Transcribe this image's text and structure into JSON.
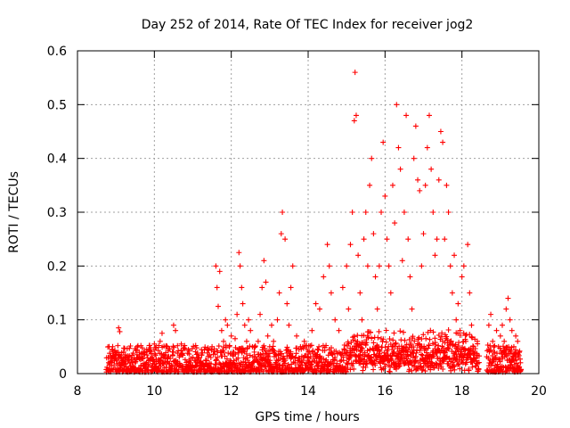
{
  "chart_data": {
    "type": "scatter",
    "title": "Day 252 of 2014, Rate Of TEC Index for receiver jog2",
    "xlabel": "GPS time / hours",
    "ylabel": "ROTI / TECUs",
    "xlim": [
      8,
      20
    ],
    "ylim": [
      0,
      0.6
    ],
    "x_ticks": [
      8,
      10,
      12,
      14,
      16,
      18,
      20
    ],
    "x_tick_labels": [
      "8",
      "10",
      "12",
      "14",
      "16",
      "18",
      "20"
    ],
    "y_ticks": [
      0,
      0.1,
      0.2,
      0.3,
      0.4,
      0.5,
      0.6
    ],
    "y_tick_labels": [
      "0",
      "0.1",
      "0.2",
      "0.3",
      "0.4",
      "0.5",
      "0.6"
    ],
    "grid": true,
    "marker": "+",
    "series": [
      {
        "name": "ROTI",
        "color": "#ff0000",
        "points": [
          [
            8.8,
            0.03
          ],
          [
            8.85,
            0.022
          ],
          [
            8.9,
            0.045
          ],
          [
            8.95,
            0.015
          ],
          [
            9.0,
            0.035
          ],
          [
            9.05,
            0.052
          ],
          [
            9.07,
            0.085
          ],
          [
            9.1,
            0.078
          ],
          [
            9.15,
            0.028
          ],
          [
            9.2,
            0.04
          ],
          [
            9.25,
            0.018
          ],
          [
            9.3,
            0.033
          ],
          [
            9.35,
            0.047
          ],
          [
            9.4,
            0.025
          ],
          [
            9.45,
            0.038
          ],
          [
            9.5,
            0.02
          ],
          [
            9.55,
            0.044
          ],
          [
            9.6,
            0.03
          ],
          [
            9.65,
            0.052
          ],
          [
            9.7,
            0.016
          ],
          [
            9.75,
            0.036
          ],
          [
            9.8,
            0.041
          ],
          [
            9.85,
            0.024
          ],
          [
            9.9,
            0.048
          ],
          [
            9.95,
            0.031
          ],
          [
            10.0,
            0.055
          ],
          [
            10.05,
            0.027
          ],
          [
            10.1,
            0.043
          ],
          [
            10.15,
            0.06
          ],
          [
            10.2,
            0.075
          ],
          [
            10.25,
            0.034
          ],
          [
            10.3,
            0.05
          ],
          [
            10.35,
            0.022
          ],
          [
            10.4,
            0.046
          ],
          [
            10.5,
            0.09
          ],
          [
            10.55,
            0.08
          ],
          [
            10.6,
            0.038
          ],
          [
            10.7,
            0.055
          ],
          [
            10.8,
            0.026
          ],
          [
            10.9,
            0.042
          ],
          [
            11.0,
            0.03
          ],
          [
            11.1,
            0.048
          ],
          [
            11.2,
            0.02
          ],
          [
            11.3,
            0.044
          ],
          [
            11.4,
            0.032
          ],
          [
            11.5,
            0.05
          ],
          [
            11.6,
            0.2
          ],
          [
            11.63,
            0.16
          ],
          [
            11.66,
            0.125
          ],
          [
            11.7,
            0.19
          ],
          [
            11.75,
            0.08
          ],
          [
            11.8,
            0.06
          ],
          [
            11.85,
            0.1
          ],
          [
            11.9,
            0.09
          ],
          [
            11.95,
            0.05
          ],
          [
            12.0,
            0.07
          ],
          [
            12.05,
            0.04
          ],
          [
            12.1,
            0.065
          ],
          [
            12.15,
            0.11
          ],
          [
            12.2,
            0.225
          ],
          [
            12.23,
            0.2
          ],
          [
            12.27,
            0.16
          ],
          [
            12.3,
            0.13
          ],
          [
            12.35,
            0.09
          ],
          [
            12.4,
            0.06
          ],
          [
            12.45,
            0.1
          ],
          [
            12.5,
            0.08
          ],
          [
            12.55,
            0.05
          ],
          [
            12.6,
            0.04
          ],
          [
            12.7,
            0.06
          ],
          [
            12.75,
            0.11
          ],
          [
            12.8,
            0.16
          ],
          [
            12.85,
            0.21
          ],
          [
            12.9,
            0.17
          ],
          [
            12.95,
            0.07
          ],
          [
            13.0,
            0.05
          ],
          [
            13.05,
            0.09
          ],
          [
            13.1,
            0.06
          ],
          [
            13.2,
            0.1
          ],
          [
            13.25,
            0.15
          ],
          [
            13.3,
            0.26
          ],
          [
            13.33,
            0.3
          ],
          [
            13.4,
            0.25
          ],
          [
            13.45,
            0.13
          ],
          [
            13.5,
            0.09
          ],
          [
            13.55,
            0.16
          ],
          [
            13.6,
            0.2
          ],
          [
            13.7,
            0.07
          ],
          [
            13.8,
            0.05
          ],
          [
            13.9,
            0.06
          ],
          [
            14.0,
            0.04
          ],
          [
            14.1,
            0.08
          ],
          [
            14.2,
            0.13
          ],
          [
            14.3,
            0.12
          ],
          [
            14.4,
            0.18
          ],
          [
            14.5,
            0.24
          ],
          [
            14.55,
            0.2
          ],
          [
            14.6,
            0.15
          ],
          [
            14.7,
            0.1
          ],
          [
            14.8,
            0.08
          ],
          [
            14.9,
            0.16
          ],
          [
            15.0,
            0.2
          ],
          [
            15.05,
            0.12
          ],
          [
            15.1,
            0.24
          ],
          [
            15.15,
            0.3
          ],
          [
            15.2,
            0.47
          ],
          [
            15.22,
            0.56
          ],
          [
            15.25,
            0.48
          ],
          [
            15.3,
            0.22
          ],
          [
            15.35,
            0.15
          ],
          [
            15.4,
            0.1
          ],
          [
            15.45,
            0.25
          ],
          [
            15.5,
            0.3
          ],
          [
            15.55,
            0.2
          ],
          [
            15.6,
            0.35
          ],
          [
            15.65,
            0.4
          ],
          [
            15.7,
            0.26
          ],
          [
            15.75,
            0.18
          ],
          [
            15.8,
            0.12
          ],
          [
            15.85,
            0.2
          ],
          [
            15.9,
            0.3
          ],
          [
            15.95,
            0.43
          ],
          [
            16.0,
            0.33
          ],
          [
            16.05,
            0.25
          ],
          [
            16.1,
            0.2
          ],
          [
            16.15,
            0.15
          ],
          [
            16.2,
            0.35
          ],
          [
            16.25,
            0.28
          ],
          [
            16.3,
            0.5
          ],
          [
            16.35,
            0.42
          ],
          [
            16.4,
            0.38
          ],
          [
            16.45,
            0.21
          ],
          [
            16.5,
            0.3
          ],
          [
            16.55,
            0.48
          ],
          [
            16.6,
            0.25
          ],
          [
            16.65,
            0.18
          ],
          [
            16.7,
            0.12
          ],
          [
            16.75,
            0.4
          ],
          [
            16.8,
            0.46
          ],
          [
            16.85,
            0.36
          ],
          [
            16.9,
            0.34
          ],
          [
            16.95,
            0.2
          ],
          [
            17.0,
            0.26
          ],
          [
            17.05,
            0.35
          ],
          [
            17.1,
            0.42
          ],
          [
            17.15,
            0.48
          ],
          [
            17.2,
            0.38
          ],
          [
            17.25,
            0.3
          ],
          [
            17.3,
            0.22
          ],
          [
            17.35,
            0.25
          ],
          [
            17.4,
            0.36
          ],
          [
            17.45,
            0.45
          ],
          [
            17.5,
            0.43
          ],
          [
            17.55,
            0.25
          ],
          [
            17.6,
            0.35
          ],
          [
            17.65,
            0.3
          ],
          [
            17.7,
            0.2
          ],
          [
            17.75,
            0.15
          ],
          [
            17.8,
            0.22
          ],
          [
            17.85,
            0.1
          ],
          [
            17.9,
            0.13
          ],
          [
            17.95,
            0.08
          ],
          [
            18.0,
            0.18
          ],
          [
            18.05,
            0.2
          ],
          [
            18.1,
            0.06
          ],
          [
            18.15,
            0.24
          ],
          [
            18.2,
            0.15
          ],
          [
            18.25,
            0.09
          ],
          [
            18.3,
            0.05
          ],
          [
            18.4,
            0.06
          ],
          [
            18.7,
            0.09
          ],
          [
            18.75,
            0.11
          ],
          [
            18.8,
            0.06
          ],
          [
            18.85,
            0.04
          ],
          [
            18.9,
            0.08
          ],
          [
            18.95,
            0.05
          ],
          [
            19.0,
            0.07
          ],
          [
            19.05,
            0.09
          ],
          [
            19.1,
            0.06
          ],
          [
            19.15,
            0.12
          ],
          [
            19.2,
            0.14
          ],
          [
            19.25,
            0.1
          ],
          [
            19.3,
            0.08
          ],
          [
            19.35,
            0.05
          ],
          [
            19.4,
            0.07
          ],
          [
            19.45,
            0.06
          ]
        ]
      }
    ]
  }
}
